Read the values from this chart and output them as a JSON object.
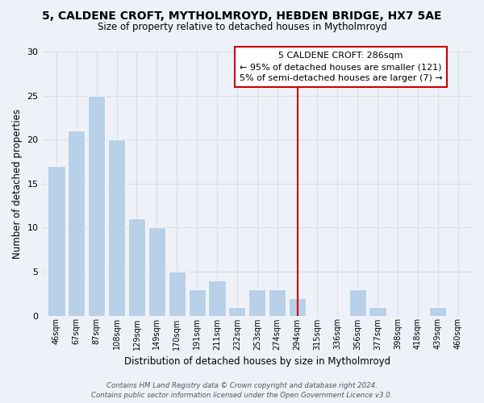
{
  "title": "5, CALDENE CROFT, MYTHOLMROYD, HEBDEN BRIDGE, HX7 5AE",
  "subtitle": "Size of property relative to detached houses in Mytholmroyd",
  "xlabel": "Distribution of detached houses by size in Mytholmroyd",
  "ylabel": "Number of detached properties",
  "bar_labels": [
    "46sqm",
    "67sqm",
    "87sqm",
    "108sqm",
    "129sqm",
    "149sqm",
    "170sqm",
    "191sqm",
    "211sqm",
    "232sqm",
    "253sqm",
    "274sqm",
    "294sqm",
    "315sqm",
    "336sqm",
    "356sqm",
    "377sqm",
    "398sqm",
    "418sqm",
    "439sqm",
    "460sqm"
  ],
  "bar_values": [
    17,
    21,
    25,
    20,
    11,
    10,
    5,
    3,
    4,
    1,
    3,
    3,
    2,
    0,
    0,
    3,
    1,
    0,
    0,
    1,
    0
  ],
  "bar_color": "#b8d0e8",
  "bar_edge_color": "#b8d0e8",
  "vline_x": 12.0,
  "vline_color": "#cc0000",
  "annotation_title": "5 CALDENE CROFT: 286sqm",
  "annotation_line1": "← 95% of detached houses are smaller (121)",
  "annotation_line2": "5% of semi-detached houses are larger (7) →",
  "annotation_box_color": "#ffffff",
  "annotation_box_edge": "#cc0000",
  "ylim": [
    0,
    30
  ],
  "yticks": [
    0,
    5,
    10,
    15,
    20,
    25,
    30
  ],
  "background_color": "#eef2f8",
  "grid_color": "#d8dce8",
  "footer_line1": "Contains HM Land Registry data © Crown copyright and database right 2024.",
  "footer_line2": "Contains public sector information licensed under the Open Government Licence v3.0."
}
